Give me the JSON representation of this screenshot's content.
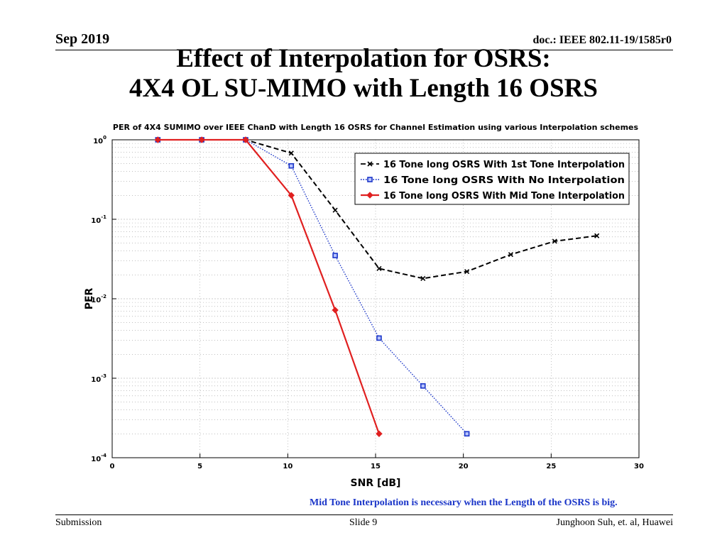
{
  "header": {
    "date": "Sep 2019",
    "doc": "doc.: IEEE 802.11-19/1585r0"
  },
  "slide_title": {
    "line1": "Effect of Interpolation for OSRS:",
    "line2": "4X4 OL SU-MIMO with Length 16 OSRS"
  },
  "chart_data": {
    "type": "line",
    "title": "PER of 4X4 SUMIMO over IEEE ChanD with Length 16 OSRS for Channel Estimation using various Interpolation schemes",
    "xlabel": "SNR [dB]",
    "ylabel": "PER",
    "yscale": "log",
    "xlim": [
      0,
      30
    ],
    "ylim": [
      0.0001,
      1
    ],
    "xticks": [
      "0",
      "5",
      "10",
      "15",
      "20",
      "25",
      "30"
    ],
    "yticks": [
      {
        "base": "10",
        "exp": "0",
        "value": 1
      },
      {
        "base": "10",
        "exp": "-1",
        "value": 0.1
      },
      {
        "base": "10",
        "exp": "-2",
        "value": 0.01
      },
      {
        "base": "10",
        "exp": "-3",
        "value": 0.001
      },
      {
        "base": "10",
        "exp": "-4",
        "value": 0.0001
      }
    ],
    "grid": true,
    "legend_position": "top-right",
    "series": [
      {
        "name": "16 Tone long OSRS With 1st Tone Interpolation",
        "color": "#000000",
        "style": "dashed",
        "marker": "x",
        "x": [
          2.6,
          5.1,
          7.6,
          10.2,
          12.7,
          15.2,
          17.7,
          20.2,
          22.7,
          25.2,
          27.6
        ],
        "y": [
          1.0,
          1.0,
          1.0,
          0.68,
          0.13,
          0.024,
          0.018,
          0.022,
          0.036,
          0.053,
          0.062
        ]
      },
      {
        "name": "16 Tone long OSRS With No Interpolation",
        "color": "#1a35c8",
        "style": "dotted",
        "marker": "square",
        "x": [
          2.6,
          5.1,
          7.6,
          10.2,
          12.7,
          15.2,
          17.7,
          20.2
        ],
        "y": [
          1.0,
          1.0,
          1.0,
          0.47,
          0.035,
          0.0032,
          0.0008,
          0.0002
        ]
      },
      {
        "name": "16 Tone long OSRS With Mid Tone Interpolation",
        "color": "#e02020",
        "style": "solid",
        "marker": "diamond",
        "x": [
          2.6,
          5.1,
          7.6,
          10.2,
          12.7,
          15.2
        ],
        "y": [
          1.0,
          1.0,
          1.0,
          0.2,
          0.0072,
          0.0002
        ]
      }
    ]
  },
  "caption": "Mid Tone Interpolation is necessary when the Length of the OSRS is big.",
  "footer": {
    "left": "Submission",
    "center": "Slide 9",
    "right": "Junghoon Suh, et. al, Huawei"
  }
}
